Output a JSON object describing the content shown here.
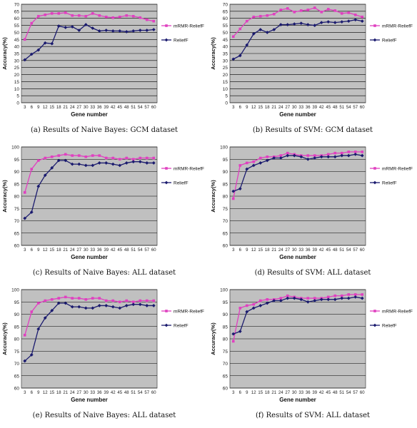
{
  "colors": {
    "plot_bg": "#c0c0c0",
    "mrmr": "#e040c0",
    "relieff": "#1a1a6e",
    "grid": "#000000"
  },
  "charts": [
    {
      "caption": "(a) Results of Naive Bayes: GCM dataset",
      "chart_data": {
        "type": "line",
        "xlabel": "Gene number",
        "ylabel": "Accuracy(%)",
        "ylim": [
          0,
          70
        ],
        "yticks": [
          0,
          5,
          10,
          15,
          20,
          25,
          30,
          35,
          40,
          45,
          50,
          55,
          60,
          65,
          70
        ],
        "legend_position": "right",
        "categories": [
          "3",
          "6",
          "9",
          "12",
          "15",
          "18",
          "21",
          "24",
          "27",
          "30",
          "33",
          "36",
          "39",
          "42",
          "45",
          "48",
          "51",
          "54",
          "57",
          "60"
        ],
        "series": [
          {
            "name": "mRMR-ReliefF",
            "values": [
              45,
              56.5,
              61.5,
              62.5,
              63.5,
              63.5,
              64,
              62,
              62,
              61.5,
              63.5,
              62,
              61,
              60.5,
              61,
              62,
              61.5,
              60.5,
              59,
              58
            ]
          },
          {
            "name": "ReliefF",
            "values": [
              30.5,
              34.5,
              37.5,
              42.5,
              42,
              54.5,
              53.5,
              54,
              51.5,
              55.5,
              53,
              51,
              51.5,
              51,
              51,
              50.5,
              51,
              51.5,
              51.5,
              52
            ]
          }
        ]
      }
    },
    {
      "caption": "(b) Results of SVM: GCM dataset",
      "chart_data": {
        "type": "line",
        "xlabel": "Gene number",
        "ylabel": "Accuracy(%)",
        "ylim": [
          0,
          70
        ],
        "yticks": [
          0,
          5,
          10,
          15,
          20,
          25,
          30,
          35,
          40,
          45,
          50,
          55,
          60,
          65,
          70
        ],
        "legend_position": "right",
        "categories": [
          "3",
          "6",
          "9",
          "12",
          "15",
          "18",
          "21",
          "24",
          "27",
          "30",
          "33",
          "36",
          "39",
          "42",
          "45",
          "48",
          "51",
          "54",
          "57",
          "60"
        ],
        "series": [
          {
            "name": "mRMR-ReliefF",
            "values": [
              47,
              52.5,
              58,
              61,
              61.5,
              62,
              63,
              66,
              67,
              64.5,
              65.5,
              66,
              67.5,
              64.5,
              66.5,
              65.5,
              63.5,
              64,
              62.5,
              61
            ]
          },
          {
            "name": "ReliefF",
            "values": [
              31,
              33.5,
              41,
              49,
              52,
              50,
              52,
              55.5,
              55.5,
              56,
              56.5,
              55.5,
              55,
              57,
              57.5,
              57,
              57.5,
              58,
              59,
              58
            ]
          }
        ]
      }
    },
    {
      "caption": "(c) Results of Naive Bayes: ALL dataset",
      "chart_data": {
        "type": "line",
        "xlabel": "Gene number",
        "ylabel": "Accuracy(%)",
        "ylim": [
          60,
          100
        ],
        "yticks": [
          60,
          65,
          70,
          75,
          80,
          85,
          90,
          95,
          100
        ],
        "legend_position": "right",
        "categories": [
          "3",
          "6",
          "9",
          "12",
          "15",
          "18",
          "21",
          "24",
          "27",
          "30",
          "33",
          "36",
          "39",
          "42",
          "45",
          "48",
          "51",
          "54",
          "57",
          "60"
        ],
        "series": [
          {
            "name": "mRMR-ReliefF",
            "values": [
              81.5,
              91,
              94.5,
              95.5,
              96,
              96.5,
              97,
              96.5,
              96.5,
              96,
              96.5,
              96.5,
              95.5,
              95.5,
              95,
              95.5,
              95,
              95.5,
              95.5,
              95.5
            ]
          },
          {
            "name": "ReliefF",
            "values": [
              71,
              73.5,
              84,
              88.5,
              91.5,
              94.5,
              94.5,
              93,
              93,
              92.5,
              92.5,
              93.5,
              93.5,
              93,
              92.5,
              93.5,
              94,
              94,
              93.5,
              93.5
            ]
          }
        ]
      }
    },
    {
      "caption": "(d) Results of SVM: ALL dataset",
      "chart_data": {
        "type": "line",
        "xlabel": "Gene number",
        "ylabel": "Accuracy(%)",
        "ylim": [
          60,
          100
        ],
        "yticks": [
          60,
          65,
          70,
          75,
          80,
          85,
          90,
          95,
          100
        ],
        "legend_position": "right",
        "categories": [
          "3",
          "6",
          "9",
          "12",
          "15",
          "18",
          "21",
          "24",
          "27",
          "30",
          "33",
          "36",
          "39",
          "42",
          "45",
          "48",
          "51",
          "54",
          "57",
          "60"
        ],
        "series": [
          {
            "name": "mRMR-ReliefF",
            "values": [
              79,
              92.5,
              93.5,
              94,
              95.5,
              96,
              96,
              96.5,
              97.5,
              97,
              96.5,
              96.5,
              96.5,
              96.5,
              97,
              97.5,
              97.5,
              98,
              98,
              98
            ]
          },
          {
            "name": "ReliefF",
            "values": [
              82,
              83,
              91,
              92.5,
              93.5,
              94.5,
              95.5,
              95.5,
              96.5,
              96.5,
              96,
              95,
              95.5,
              96,
              96,
              96,
              96.5,
              96.5,
              97,
              96.5
            ]
          }
        ]
      }
    },
    {
      "caption": "(e) Results of Naive Bayes: ALL dataset",
      "chart_data": {
        "type": "line",
        "xlabel": "Gene number",
        "ylabel": "Accuracy(%)",
        "ylim": [
          60,
          100
        ],
        "yticks": [
          60,
          65,
          70,
          75,
          80,
          85,
          90,
          95,
          100
        ],
        "legend_position": "right",
        "categories": [
          "3",
          "6",
          "9",
          "12",
          "15",
          "18",
          "21",
          "24",
          "27",
          "30",
          "33",
          "36",
          "39",
          "42",
          "45",
          "48",
          "51",
          "54",
          "57",
          "60"
        ],
        "series": [
          {
            "name": "mRMR-ReliefF",
            "values": [
              81.5,
              91,
              94.5,
              95.5,
              96,
              96.5,
              97,
              96.5,
              96.5,
              96,
              96.5,
              96.5,
              95.5,
              95.5,
              95,
              95.5,
              95,
              95.5,
              95.5,
              95.5
            ]
          },
          {
            "name": "ReliefF",
            "values": [
              71,
              73.5,
              84,
              88.5,
              91.5,
              94.5,
              94.5,
              93,
              93,
              92.5,
              92.5,
              93.5,
              93.5,
              93,
              92.5,
              93.5,
              94,
              94,
              93.5,
              93.5
            ]
          }
        ]
      }
    },
    {
      "caption": "(f) Results of SVM: ALL dataset",
      "chart_data": {
        "type": "line",
        "xlabel": "Gene number",
        "ylabel": "Accuracy(%)",
        "ylim": [
          60,
          100
        ],
        "yticks": [
          60,
          65,
          70,
          75,
          80,
          85,
          90,
          95,
          100
        ],
        "legend_position": "right",
        "categories": [
          "3",
          "6",
          "9",
          "12",
          "15",
          "18",
          "21",
          "24",
          "27",
          "30",
          "33",
          "36",
          "39",
          "42",
          "45",
          "48",
          "51",
          "54",
          "57",
          "60"
        ],
        "series": [
          {
            "name": "mRMR-ReliefF",
            "values": [
              79,
              92.5,
              93.5,
              94,
              95.5,
              96,
              96,
              96.5,
              97.5,
              97,
              96.5,
              96.5,
              96.5,
              96.5,
              97,
              97.5,
              97.5,
              98,
              98,
              98
            ]
          },
          {
            "name": "ReliefF",
            "values": [
              82,
              83,
              91,
              92.5,
              93.5,
              94.5,
              95.5,
              95.5,
              96.5,
              96.5,
              96,
              95,
              95.5,
              96,
              96,
              96,
              96.5,
              96.5,
              97,
              96.5
            ]
          }
        ]
      }
    }
  ]
}
